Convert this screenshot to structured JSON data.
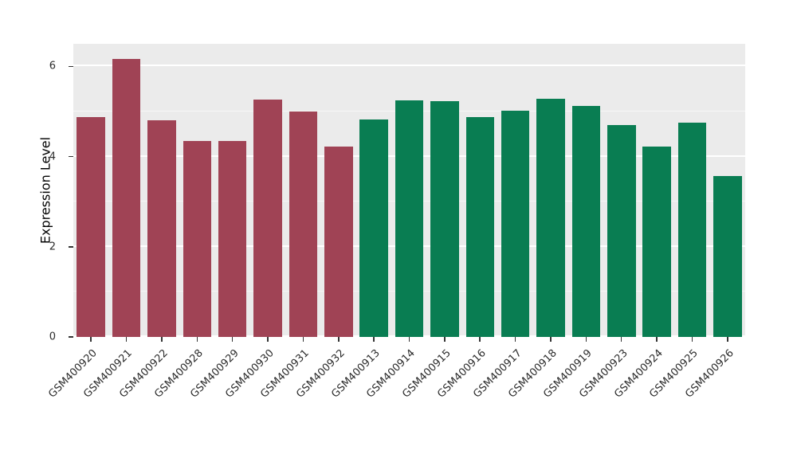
{
  "chart_data": {
    "type": "bar",
    "title": "",
    "xlabel": "",
    "ylabel": "Expression Level",
    "ylim": [
      0,
      6.5
    ],
    "yticks": [
      0,
      2,
      4,
      6
    ],
    "minor_gridlines": [
      1,
      3,
      5
    ],
    "legend": "none",
    "plot_background": "#EBEBEB",
    "grid_color": "#FFFFFF",
    "group_colors": {
      "red": "#A04355",
      "green": "#097D52"
    },
    "categories": [
      "GSM400920",
      "GSM400921",
      "GSM400922",
      "GSM400928",
      "GSM400929",
      "GSM400930",
      "GSM400931",
      "GSM400932",
      "GSM400913",
      "GSM400914",
      "GSM400915",
      "GSM400916",
      "GSM400917",
      "GSM400918",
      "GSM400919",
      "GSM400923",
      "GSM400924",
      "GSM400925",
      "GSM400926"
    ],
    "values": [
      4.87,
      6.17,
      4.8,
      4.35,
      4.34,
      5.27,
      5.0,
      4.23,
      4.83,
      5.24,
      5.23,
      4.88,
      5.01,
      5.28,
      5.12,
      4.7,
      4.23,
      4.75,
      3.56
    ],
    "groups": [
      "red",
      "red",
      "red",
      "red",
      "red",
      "red",
      "red",
      "red",
      "green",
      "green",
      "green",
      "green",
      "green",
      "green",
      "green",
      "green",
      "green",
      "green",
      "green"
    ]
  }
}
